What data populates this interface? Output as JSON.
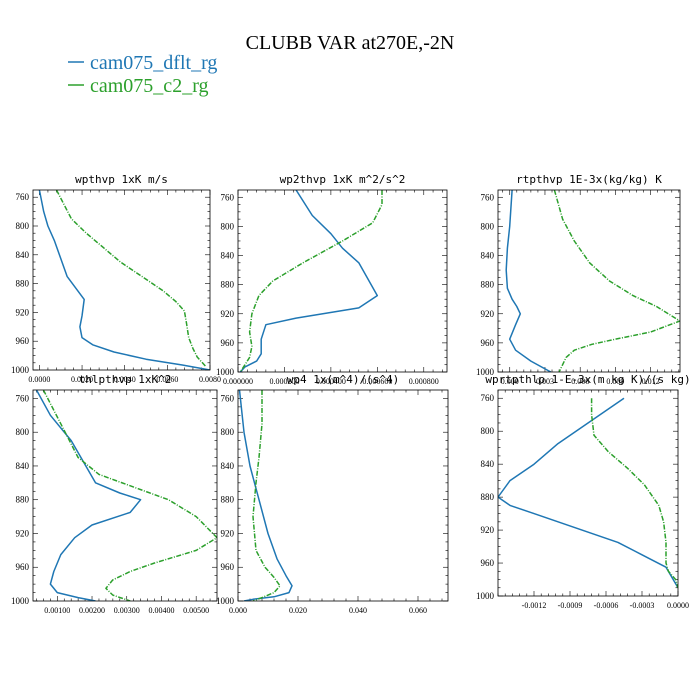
{
  "figure": {
    "title": "CLUBB VAR at270E,-2N",
    "legend": [
      {
        "name": "cam075_dflt_rg",
        "color": "#1f77b4"
      },
      {
        "name": "cam075_c2_rg",
        "color": "#2ca02c"
      }
    ]
  },
  "chart_data": [
    {
      "type": "line",
      "title": "wpthvp  1xK m/s",
      "xlim": [
        -0.0003,
        0.008
      ],
      "ylim": [
        1000,
        750
      ],
      "xticks": [
        0,
        0.002,
        0.004,
        0.006,
        0.008
      ],
      "xtick_labels": [
        "0.0000",
        "0.0020",
        "0.0040",
        "0.0060",
        "0.0080"
      ],
      "yticks": [
        760,
        800,
        840,
        880,
        920,
        960,
        1000
      ],
      "series": [
        {
          "name": "cam075_dflt_rg",
          "color": "#1f77b4",
          "x": [
            0.0,
            0.0002,
            0.0004,
            0.0007,
            0.001,
            0.0013,
            0.0021,
            0.002,
            0.0019,
            0.002,
            0.0025,
            0.0035,
            0.005,
            0.0067,
            0.008
          ],
          "y": [
            750,
            780,
            800,
            820,
            845,
            870,
            902,
            925,
            940,
            955,
            965,
            975,
            985,
            993,
            1000
          ]
        },
        {
          "name": "cam075_c2_rg",
          "color": "#2ca02c",
          "x": [
            0.0008,
            0.0015,
            0.0022,
            0.003,
            0.0038,
            0.0048,
            0.0058,
            0.0064,
            0.0068,
            0.0069,
            0.007,
            0.0072,
            0.0074,
            0.0078
          ],
          "y": [
            750,
            790,
            810,
            830,
            850,
            870,
            890,
            905,
            918,
            935,
            955,
            970,
            982,
            995
          ]
        }
      ]
    },
    {
      "type": "line",
      "title": "wp2thvp  1xK m^2/s^2",
      "xlim": [
        0,
        0.0009
      ],
      "ylim": [
        1000,
        750
      ],
      "xticks": [
        0,
        0.0002,
        0.0004,
        0.0006,
        0.0008
      ],
      "xtick_labels": [
        "0.000000",
        "0.000200",
        "0.000400",
        "0.000600",
        "0.000800"
      ],
      "yticks": [
        760,
        800,
        840,
        880,
        920,
        960,
        1000
      ],
      "series": [
        {
          "name": "cam075_dflt_rg",
          "color": "#1f77b4",
          "x": [
            0.00025,
            0.00032,
            0.0004,
            0.00045,
            0.00052,
            0.0006,
            0.00052,
            0.00025,
            0.00012,
            0.0001,
            0.0001,
            8e-05,
            3e-05,
            1e-05
          ],
          "y": [
            750,
            785,
            810,
            830,
            850,
            895,
            912,
            926,
            935,
            955,
            975,
            985,
            993,
            1000
          ]
        },
        {
          "name": "cam075_c2_rg",
          "color": "#2ca02c",
          "x": [
            0.00062,
            0.00062,
            0.00058,
            0.00045,
            0.00028,
            0.00015,
            9e-05,
            6e-05,
            5e-05,
            6e-05,
            5e-05,
            3e-05,
            1e-05
          ],
          "y": [
            750,
            770,
            795,
            820,
            850,
            875,
            895,
            920,
            945,
            965,
            980,
            990,
            1000
          ]
        }
      ]
    },
    {
      "type": "line",
      "title": "rtpthvp  1E-3x(kg/kg) K",
      "xlim": [
        -0.001,
        0.0145
      ],
      "ylim": [
        1000,
        750
      ],
      "xticks": [
        0,
        0.003,
        0.006,
        0.009,
        0.012
      ],
      "xtick_labels": [
        "0.000",
        "0.003",
        "0.006",
        "0.009",
        "0.012"
      ],
      "yticks": [
        760,
        800,
        840,
        880,
        920,
        960,
        1000
      ],
      "series": [
        {
          "name": "cam075_dflt_rg",
          "color": "#1f77b4",
          "x": [
            0.0002,
            0.0001,
            0.0,
            -0.0002,
            -0.0003,
            -0.0002,
            0.0002,
            0.0006,
            0.0009,
            0.0005,
            0.0,
            0.0005,
            0.0018,
            0.0035
          ],
          "y": [
            750,
            775,
            800,
            830,
            860,
            885,
            900,
            910,
            920,
            935,
            955,
            970,
            985,
            1000
          ]
        },
        {
          "name": "cam075_c2_rg",
          "color": "#2ca02c",
          "x": [
            0.0038,
            0.0045,
            0.0055,
            0.0068,
            0.0085,
            0.0105,
            0.0125,
            0.0145,
            0.012,
            0.009,
            0.007,
            0.0055,
            0.0048,
            0.0042
          ],
          "y": [
            750,
            790,
            820,
            850,
            875,
            895,
            910,
            930,
            945,
            955,
            962,
            970,
            980,
            1000
          ]
        }
      ]
    },
    {
      "type": "line",
      "title": "thlpthvp  1xK^2",
      "xlim": [
        0.0003,
        0.0056
      ],
      "ylim": [
        1000,
        750
      ],
      "xticks": [
        0.001,
        0.002,
        0.003,
        0.004,
        0.005
      ],
      "xtick_labels": [
        "0.00100",
        "0.00200",
        "0.00300",
        "0.00400",
        "0.00500"
      ],
      "yticks": [
        760,
        800,
        840,
        880,
        920,
        960,
        1000
      ],
      "series": [
        {
          "name": "cam075_dflt_rg",
          "color": "#1f77b4",
          "x": [
            0.0004,
            0.0008,
            0.0014,
            0.0021,
            0.0028,
            0.0034,
            0.0031,
            0.002,
            0.0015,
            0.0011,
            0.0009,
            0.0008,
            0.001,
            0.0016,
            0.0021
          ],
          "y": [
            750,
            780,
            810,
            860,
            872,
            880,
            895,
            910,
            925,
            945,
            965,
            980,
            990,
            996,
            1000
          ]
        },
        {
          "name": "cam075_c2_rg",
          "color": "#2ca02c",
          "x": [
            0.0006,
            0.0011,
            0.0016,
            0.0022,
            0.0032,
            0.0042,
            0.005,
            0.0056,
            0.005,
            0.0038,
            0.0031,
            0.0026,
            0.0024,
            0.0026,
            0.0031
          ],
          "y": [
            750,
            790,
            830,
            850,
            865,
            880,
            900,
            925,
            940,
            955,
            965,
            975,
            985,
            993,
            1000
          ]
        }
      ]
    },
    {
      "type": "line",
      "title": "wp4  1x(m^4)/(s^4)",
      "xlim": [
        0,
        0.07
      ],
      "ylim": [
        1000,
        750
      ],
      "xticks": [
        0,
        0.02,
        0.04,
        0.06
      ],
      "xtick_labels": [
        "0.000",
        "0.020",
        "0.040",
        "0.060"
      ],
      "yticks": [
        760,
        800,
        840,
        880,
        920,
        960,
        1000
      ],
      "series": [
        {
          "name": "cam075_dflt_rg",
          "color": "#1f77b4",
          "x": [
            0.0005,
            0.002,
            0.004,
            0.007,
            0.01,
            0.013,
            0.016,
            0.018,
            0.017,
            0.012,
            0.005,
            0.002
          ],
          "y": [
            750,
            800,
            840,
            880,
            920,
            950,
            970,
            982,
            990,
            995,
            998,
            1000
          ]
        },
        {
          "name": "cam075_c2_rg",
          "color": "#2ca02c",
          "x": [
            0.008,
            0.008,
            0.007,
            0.006,
            0.005,
            0.006,
            0.009,
            0.012,
            0.014,
            0.012,
            0.008,
            0.005
          ],
          "y": [
            750,
            790,
            830,
            860,
            900,
            940,
            960,
            972,
            982,
            990,
            996,
            1000
          ]
        }
      ]
    },
    {
      "type": "line",
      "title": "wprtpthlp  1-E-3x(m kg K)/(s kg)",
      "xlim": [
        -0.0015,
        0.0
      ],
      "ylim": [
        1000,
        750
      ],
      "xticks": [
        -0.0012,
        -0.0009,
        -0.0006,
        -0.0003,
        0.0
      ],
      "xtick_labels": [
        "-0.0012",
        "-0.0009",
        "-0.0006",
        "-0.0003",
        "0.0000"
      ],
      "yticks": [
        760,
        800,
        840,
        880,
        920,
        960,
        1000
      ],
      "series": [
        {
          "name": "cam075_dflt_rg",
          "color": "#1f77b4",
          "x": [
            -0.00045,
            -0.0006,
            -0.0008,
            -0.001,
            -0.0012,
            -0.0014,
            -0.0015,
            -0.0014,
            -0.0012,
            -0.0008,
            -0.0005,
            -0.0003,
            -0.0001,
            0.0
          ],
          "y": [
            760,
            775,
            795,
            815,
            840,
            860,
            880,
            890,
            900,
            920,
            935,
            950,
            965,
            990
          ]
        },
        {
          "name": "cam075_c2_rg",
          "color": "#2ca02c",
          "x": [
            -0.00072,
            -0.00072,
            -0.0007,
            -0.00058,
            -0.00042,
            -0.00028,
            -0.00016,
            -0.00012,
            -0.0001,
            -0.0001,
            -8e-05,
            -2e-05,
            0.0
          ],
          "y": [
            760,
            780,
            805,
            825,
            845,
            865,
            890,
            910,
            935,
            960,
            970,
            980,
            990
          ]
        }
      ]
    }
  ]
}
